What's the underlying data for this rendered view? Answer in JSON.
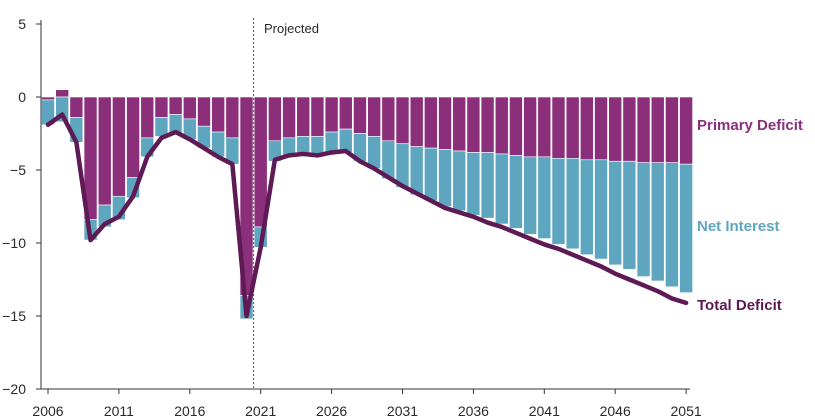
{
  "chart_data": {
    "type": "bar",
    "title": "",
    "xlabel": "",
    "ylabel": "",
    "x": [
      2006,
      2007,
      2008,
      2009,
      2010,
      2011,
      2012,
      2013,
      2014,
      2015,
      2016,
      2017,
      2018,
      2019,
      2020,
      2021,
      2022,
      2023,
      2024,
      2025,
      2026,
      2027,
      2028,
      2029,
      2030,
      2031,
      2032,
      2033,
      2034,
      2035,
      2036,
      2037,
      2038,
      2039,
      2040,
      2041,
      2042,
      2043,
      2044,
      2045,
      2046,
      2047,
      2048,
      2049,
      2050,
      2051
    ],
    "ylim": [
      -20,
      5
    ],
    "yticks": [
      5,
      0,
      -5,
      -10,
      -15,
      -20
    ],
    "yticklabels": [
      "5",
      "0",
      "−5",
      "−10",
      "−15",
      "−20"
    ],
    "xticks": [
      2006,
      2011,
      2016,
      2021,
      2026,
      2031,
      2036,
      2041,
      2046,
      2051
    ],
    "xticklabels": [
      "2006",
      "2011",
      "2016",
      "2021",
      "2026",
      "2031",
      "2036",
      "2041",
      "2046",
      "2051"
    ],
    "projection_start": 2021,
    "projected_label": "Projected",
    "grid": false,
    "series": [
      {
        "name": "Primary Deficit",
        "color": "#8b2f7b",
        "values": [
          -0.2,
          0.5,
          -1.4,
          -8.4,
          -7.4,
          -6.8,
          -5.5,
          -2.8,
          -1.4,
          -1.2,
          -1.5,
          -2.0,
          -2.4,
          -2.8,
          -13.6,
          -8.9,
          -3.0,
          -2.8,
          -2.7,
          -2.7,
          -2.4,
          -2.2,
          -2.5,
          -2.7,
          -3.0,
          -3.2,
          -3.4,
          -3.5,
          -3.6,
          -3.7,
          -3.8,
          -3.8,
          -3.9,
          -4.0,
          -4.1,
          -4.1,
          -4.2,
          -4.2,
          -4.3,
          -4.3,
          -4.4,
          -4.4,
          -4.5,
          -4.5,
          -4.5,
          -4.6
        ]
      },
      {
        "name": "Net Interest",
        "color": "#5ea6bf",
        "values": [
          -1.7,
          -1.7,
          -1.7,
          -1.4,
          -1.5,
          -1.6,
          -1.4,
          -1.3,
          -1.3,
          -1.3,
          -1.4,
          -1.5,
          -1.7,
          -1.8,
          -1.6,
          -1.4,
          -1.4,
          -1.2,
          -1.2,
          -1.3,
          -1.4,
          -1.6,
          -1.9,
          -2.2,
          -2.6,
          -3.0,
          -3.3,
          -3.6,
          -3.9,
          -4.1,
          -4.3,
          -4.5,
          -4.8,
          -5.0,
          -5.3,
          -5.6,
          -5.9,
          -6.2,
          -6.5,
          -6.8,
          -7.1,
          -7.4,
          -7.8,
          -8.1,
          -8.5,
          -8.8
        ]
      },
      {
        "name": "Total Deficit",
        "type": "line",
        "color": "#5e1a55",
        "values": [
          -1.9,
          -1.2,
          -3.1,
          -9.8,
          -8.7,
          -8.2,
          -6.8,
          -4.1,
          -2.8,
          -2.4,
          -2.9,
          -3.5,
          -4.1,
          -4.6,
          -15.0,
          -10.3,
          -4.3,
          -4.0,
          -3.9,
          -4.0,
          -3.8,
          -3.7,
          -4.4,
          -4.9,
          -5.5,
          -6.1,
          -6.6,
          -7.1,
          -7.6,
          -7.9,
          -8.2,
          -8.6,
          -8.9,
          -9.3,
          -9.7,
          -10.1,
          -10.4,
          -10.8,
          -11.2,
          -11.6,
          -12.1,
          -12.5,
          -12.9,
          -13.3,
          -13.8,
          -14.1
        ]
      }
    ],
    "labels": {
      "primary": "Primary Deficit",
      "interest": "Net Interest",
      "total": "Total Deficit"
    }
  }
}
